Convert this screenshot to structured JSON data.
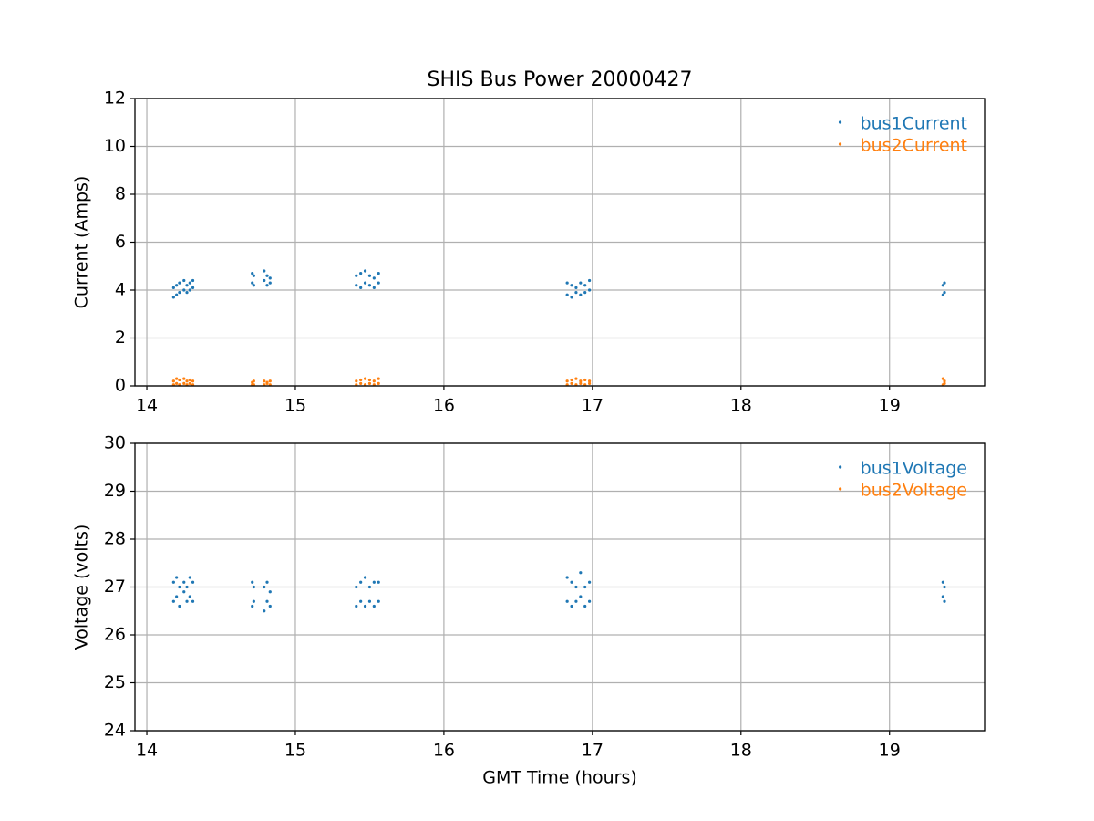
{
  "chart_data": [
    {
      "type": "scatter",
      "title": "SHIS Bus Power 20000427",
      "ylabel": "Current (Amps)",
      "xlim": [
        13.92,
        19.64
      ],
      "xticks": [
        14,
        15,
        16,
        17,
        18,
        19
      ],
      "ylim": [
        0,
        12
      ],
      "yticks": [
        0,
        2,
        4,
        6,
        8,
        10,
        12
      ],
      "grid": true,
      "legend": "upper right",
      "series": [
        {
          "name": "bus1Current",
          "color": "#1f77b4",
          "x": [
            14.18,
            14.18,
            14.2,
            14.2,
            14.22,
            14.22,
            14.25,
            14.25,
            14.27,
            14.27,
            14.29,
            14.29,
            14.31,
            14.31,
            14.71,
            14.71,
            14.72,
            14.72,
            14.79,
            14.79,
            14.81,
            14.81,
            14.83,
            14.83,
            15.41,
            15.41,
            15.44,
            15.44,
            15.47,
            15.47,
            15.5,
            15.5,
            15.53,
            15.53,
            15.56,
            15.56,
            16.83,
            16.83,
            16.86,
            16.86,
            16.89,
            16.89,
            16.92,
            16.92,
            16.95,
            16.95,
            16.98,
            16.98,
            19.36,
            19.36,
            19.37,
            19.37
          ],
          "values": [
            3.7,
            4.1,
            3.8,
            4.2,
            3.9,
            4.3,
            4.0,
            4.4,
            3.9,
            4.2,
            4.0,
            4.3,
            4.1,
            4.4,
            4.3,
            4.7,
            4.2,
            4.6,
            4.4,
            4.8,
            4.2,
            4.6,
            4.3,
            4.5,
            4.2,
            4.6,
            4.1,
            4.7,
            4.3,
            4.8,
            4.2,
            4.6,
            4.1,
            4.5,
            4.3,
            4.7,
            3.8,
            4.3,
            3.7,
            4.2,
            3.9,
            4.1,
            3.8,
            4.3,
            3.9,
            4.2,
            4.0,
            4.4,
            3.8,
            4.2,
            3.9,
            4.3
          ]
        },
        {
          "name": "bus2Current",
          "color": "#ff7f0e",
          "x": [
            14.18,
            14.18,
            14.2,
            14.2,
            14.22,
            14.22,
            14.25,
            14.25,
            14.27,
            14.27,
            14.29,
            14.29,
            14.31,
            14.31,
            14.71,
            14.71,
            14.72,
            14.72,
            14.79,
            14.79,
            14.81,
            14.81,
            14.83,
            14.83,
            15.41,
            15.41,
            15.44,
            15.44,
            15.47,
            15.47,
            15.5,
            15.5,
            15.53,
            15.53,
            15.56,
            15.56,
            16.83,
            16.83,
            16.86,
            16.86,
            16.89,
            16.89,
            16.92,
            16.92,
            16.95,
            16.95,
            16.98,
            16.98,
            19.36,
            19.36,
            19.37,
            19.37
          ],
          "values": [
            0.05,
            0.2,
            0.1,
            0.3,
            0.05,
            0.25,
            0.1,
            0.3,
            0.05,
            0.2,
            0.1,
            0.25,
            0.05,
            0.2,
            0.05,
            0.15,
            0.05,
            0.2,
            0.05,
            0.2,
            0.1,
            0.15,
            0.05,
            0.2,
            0.05,
            0.2,
            0.1,
            0.25,
            0.05,
            0.3,
            0.1,
            0.25,
            0.05,
            0.2,
            0.1,
            0.3,
            0.05,
            0.2,
            0.1,
            0.25,
            0.05,
            0.3,
            0.1,
            0.2,
            0.05,
            0.25,
            0.1,
            0.2,
            0.05,
            0.3,
            0.1,
            0.2
          ]
        }
      ]
    },
    {
      "type": "scatter",
      "xlabel": "GMT Time (hours)",
      "ylabel": "Voltage (volts)",
      "xlim": [
        13.92,
        19.64
      ],
      "xticks": [
        14,
        15,
        16,
        17,
        18,
        19
      ],
      "ylim": [
        24,
        30
      ],
      "yticks": [
        24,
        25,
        26,
        27,
        28,
        29,
        30
      ],
      "grid": true,
      "legend": "upper right",
      "series": [
        {
          "name": "bus1Voltage",
          "color": "#1f77b4",
          "x": [
            14.18,
            14.18,
            14.2,
            14.2,
            14.22,
            14.22,
            14.25,
            14.25,
            14.27,
            14.27,
            14.29,
            14.29,
            14.31,
            14.31,
            14.71,
            14.71,
            14.72,
            14.72,
            14.79,
            14.79,
            14.81,
            14.81,
            14.83,
            14.83,
            15.41,
            15.41,
            15.44,
            15.44,
            15.47,
            15.47,
            15.5,
            15.5,
            15.53,
            15.53,
            15.56,
            15.56,
            16.83,
            16.83,
            16.86,
            16.86,
            16.89,
            16.89,
            16.92,
            16.92,
            16.95,
            16.95,
            16.98,
            16.98,
            19.36,
            19.36,
            19.37,
            19.37
          ],
          "values": [
            26.7,
            27.1,
            26.8,
            27.2,
            26.6,
            27.0,
            26.9,
            27.1,
            26.7,
            27.0,
            26.8,
            27.2,
            26.7,
            27.1,
            26.6,
            27.1,
            26.7,
            27.0,
            26.5,
            27.0,
            26.7,
            27.1,
            26.6,
            26.9,
            26.6,
            27.0,
            26.7,
            27.1,
            26.6,
            27.2,
            26.7,
            27.0,
            26.6,
            27.1,
            26.7,
            27.1,
            26.7,
            27.2,
            26.6,
            27.1,
            26.7,
            27.0,
            26.8,
            27.3,
            26.6,
            27.0,
            26.7,
            27.1,
            26.8,
            27.1,
            26.7,
            27.0
          ]
        },
        {
          "name": "bus2Voltage",
          "color": "#ff7f0e",
          "x": [],
          "values": []
        }
      ]
    }
  ]
}
